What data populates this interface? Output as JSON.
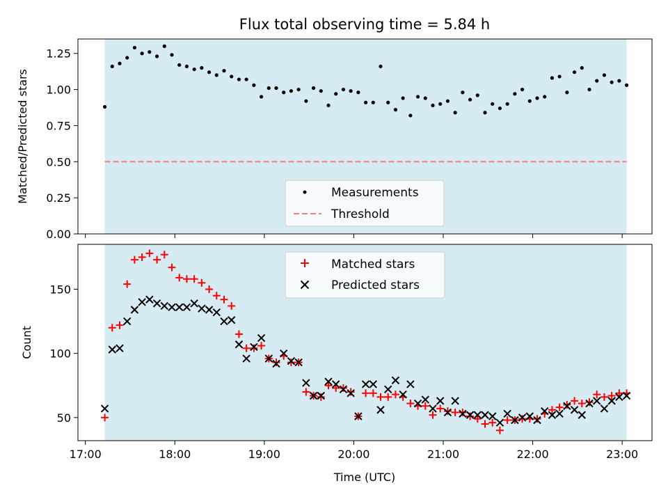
{
  "chart_data": [
    {
      "type": "scatter",
      "title": "Flux total observing time = 5.84 h",
      "ylabel": "Matched/Predicted stars",
      "xlabel": "",
      "xlim": [
        "16:55",
        "23:20"
      ],
      "ylim": [
        0,
        1.35
      ],
      "yticks": [
        0.0,
        0.25,
        0.5,
        0.75,
        1.0,
        1.25
      ],
      "ytick_labels": [
        "0.00",
        "0.25",
        "0.50",
        "0.75",
        "1.00",
        "1.25"
      ],
      "xticks": [
        "17:00",
        "18:00",
        "19:00",
        "20:00",
        "21:00",
        "22:00",
        "23:00"
      ],
      "shaded_span": [
        "17:13",
        "23:03"
      ],
      "legend_placement": "lower-center",
      "legend": [
        "Measurements",
        "Threshold"
      ],
      "threshold": 0.5,
      "series": [
        {
          "name": "Measurements",
          "x": [
            "17:13",
            "17:18",
            "17:23",
            "17:28",
            "17:33",
            "17:38",
            "17:43",
            "17:48",
            "17:53",
            "17:58",
            "18:03",
            "18:08",
            "18:13",
            "18:18",
            "18:23",
            "18:28",
            "18:33",
            "18:38",
            "18:43",
            "18:48",
            "18:53",
            "18:58",
            "19:03",
            "19:08",
            "19:13",
            "19:18",
            "19:23",
            "19:28",
            "19:33",
            "19:38",
            "19:43",
            "19:48",
            "19:53",
            "19:58",
            "20:03",
            "20:08",
            "20:13",
            "20:18",
            "20:23",
            "20:28",
            "20:33",
            "20:38",
            "20:43",
            "20:48",
            "20:53",
            "20:58",
            "21:03",
            "21:08",
            "21:13",
            "21:18",
            "21:23",
            "21:28",
            "21:33",
            "21:38",
            "21:43",
            "21:48",
            "21:53",
            "21:58",
            "22:03",
            "22:08",
            "22:13",
            "22:18",
            "22:23",
            "22:28",
            "22:33",
            "22:38",
            "22:43",
            "22:48",
            "22:53",
            "22:58",
            "23:03"
          ],
          "y": [
            0.88,
            1.16,
            1.18,
            1.22,
            1.29,
            1.25,
            1.26,
            1.23,
            1.3,
            1.24,
            1.17,
            1.16,
            1.14,
            1.15,
            1.12,
            1.1,
            1.13,
            1.09,
            1.07,
            1.07,
            1.03,
            0.95,
            1.01,
            1.01,
            0.98,
            0.99,
            1.0,
            0.92,
            1.01,
            0.99,
            0.89,
            0.97,
            1.0,
            0.99,
            0.98,
            0.91,
            0.91,
            1.16,
            0.91,
            0.86,
            0.94,
            0.82,
            0.95,
            0.94,
            0.89,
            0.9,
            0.92,
            0.84,
            0.98,
            0.93,
            0.96,
            0.84,
            0.9,
            0.87,
            0.9,
            0.97,
            1.0,
            0.92,
            0.94,
            0.95,
            1.08,
            1.09,
            0.98,
            1.12,
            1.15,
            1.0,
            1.06,
            1.1,
            1.05,
            1.06,
            1.03
          ]
        }
      ]
    },
    {
      "type": "scatter",
      "title": "",
      "ylabel": "Count",
      "xlabel": "Time (UTC)",
      "xlim": [
        "16:55",
        "23:20"
      ],
      "ylim": [
        32,
        185
      ],
      "yticks": [
        50,
        100,
        150
      ],
      "ytick_labels": [
        "50",
        "100",
        "150"
      ],
      "xticks": [
        "17:00",
        "18:00",
        "19:00",
        "20:00",
        "21:00",
        "22:00",
        "23:00"
      ],
      "xtick_labels": [
        "17:00",
        "18:00",
        "19:00",
        "20:00",
        "21:00",
        "22:00",
        "23:00"
      ],
      "shaded_span": [
        "17:13",
        "23:03"
      ],
      "legend_placement": "upper-center",
      "legend": [
        "Matched stars",
        "Predicted stars"
      ],
      "series": [
        {
          "name": "Matched stars",
          "x": [
            "17:13",
            "17:18",
            "17:23",
            "17:28",
            "17:33",
            "17:38",
            "17:43",
            "17:48",
            "17:53",
            "17:58",
            "18:03",
            "18:08",
            "18:13",
            "18:18",
            "18:23",
            "18:28",
            "18:33",
            "18:38",
            "18:43",
            "18:48",
            "18:53",
            "18:58",
            "19:03",
            "19:08",
            "19:13",
            "19:18",
            "19:23",
            "19:28",
            "19:33",
            "19:38",
            "19:43",
            "19:48",
            "19:53",
            "19:58",
            "20:03",
            "20:08",
            "20:13",
            "20:18",
            "20:23",
            "20:28",
            "20:33",
            "20:38",
            "20:43",
            "20:48",
            "20:53",
            "20:58",
            "21:03",
            "21:08",
            "21:13",
            "21:18",
            "21:23",
            "21:28",
            "21:33",
            "21:38",
            "21:43",
            "21:48",
            "21:53",
            "21:58",
            "22:03",
            "22:08",
            "22:13",
            "22:18",
            "22:23",
            "22:28",
            "22:33",
            "22:38",
            "22:43",
            "22:48",
            "22:53",
            "22:58",
            "23:03"
          ],
          "y": [
            50,
            120,
            122,
            154,
            173,
            175,
            178,
            173,
            177,
            167,
            159,
            158,
            158,
            155,
            150,
            145,
            142,
            137,
            115,
            104,
            104,
            106,
            96,
            93,
            98,
            93,
            93,
            70,
            67,
            66,
            75,
            73,
            73,
            70,
            51,
            69,
            69,
            66,
            66,
            68,
            66,
            61,
            59,
            59,
            52,
            57,
            55,
            54,
            54,
            51,
            49,
            45,
            46,
            40,
            48,
            48,
            49,
            49,
            49,
            53,
            56,
            58,
            60,
            63,
            61,
            62,
            68,
            66,
            67,
            69,
            69
          ]
        },
        {
          "name": "Predicted stars",
          "x": [
            "17:13",
            "17:18",
            "17:23",
            "17:28",
            "17:33",
            "17:38",
            "17:43",
            "17:48",
            "17:53",
            "17:58",
            "18:03",
            "18:08",
            "18:13",
            "18:18",
            "18:23",
            "18:28",
            "18:33",
            "18:38",
            "18:43",
            "18:48",
            "18:53",
            "18:58",
            "19:03",
            "19:08",
            "19:13",
            "19:18",
            "19:23",
            "19:28",
            "19:33",
            "19:38",
            "19:43",
            "19:48",
            "19:53",
            "19:58",
            "20:03",
            "20:08",
            "20:13",
            "20:18",
            "20:23",
            "20:28",
            "20:33",
            "20:38",
            "20:43",
            "20:48",
            "20:53",
            "20:58",
            "21:03",
            "21:08",
            "21:13",
            "21:18",
            "21:23",
            "21:28",
            "21:33",
            "21:38",
            "21:43",
            "21:48",
            "21:53",
            "21:58",
            "22:03",
            "22:08",
            "22:13",
            "22:18",
            "22:23",
            "22:28",
            "22:33",
            "22:38",
            "22:43",
            "22:48",
            "22:53",
            "22:58",
            "23:03"
          ],
          "y": [
            57,
            103,
            104,
            125,
            134,
            140,
            142,
            139,
            137,
            136,
            136,
            136,
            139,
            135,
            134,
            132,
            125,
            126,
            107,
            96,
            105,
            112,
            96,
            92,
            100,
            94,
            93,
            77,
            67,
            67,
            78,
            76,
            72,
            69,
            51,
            76,
            76,
            56,
            72,
            79,
            68,
            76,
            61,
            64,
            57,
            63,
            54,
            63,
            53,
            52,
            52,
            52,
            51,
            46,
            53,
            48,
            50,
            51,
            48,
            55,
            52,
            53,
            59,
            56,
            52,
            61,
            63,
            57,
            63,
            66,
            67
          ]
        }
      ]
    }
  ]
}
